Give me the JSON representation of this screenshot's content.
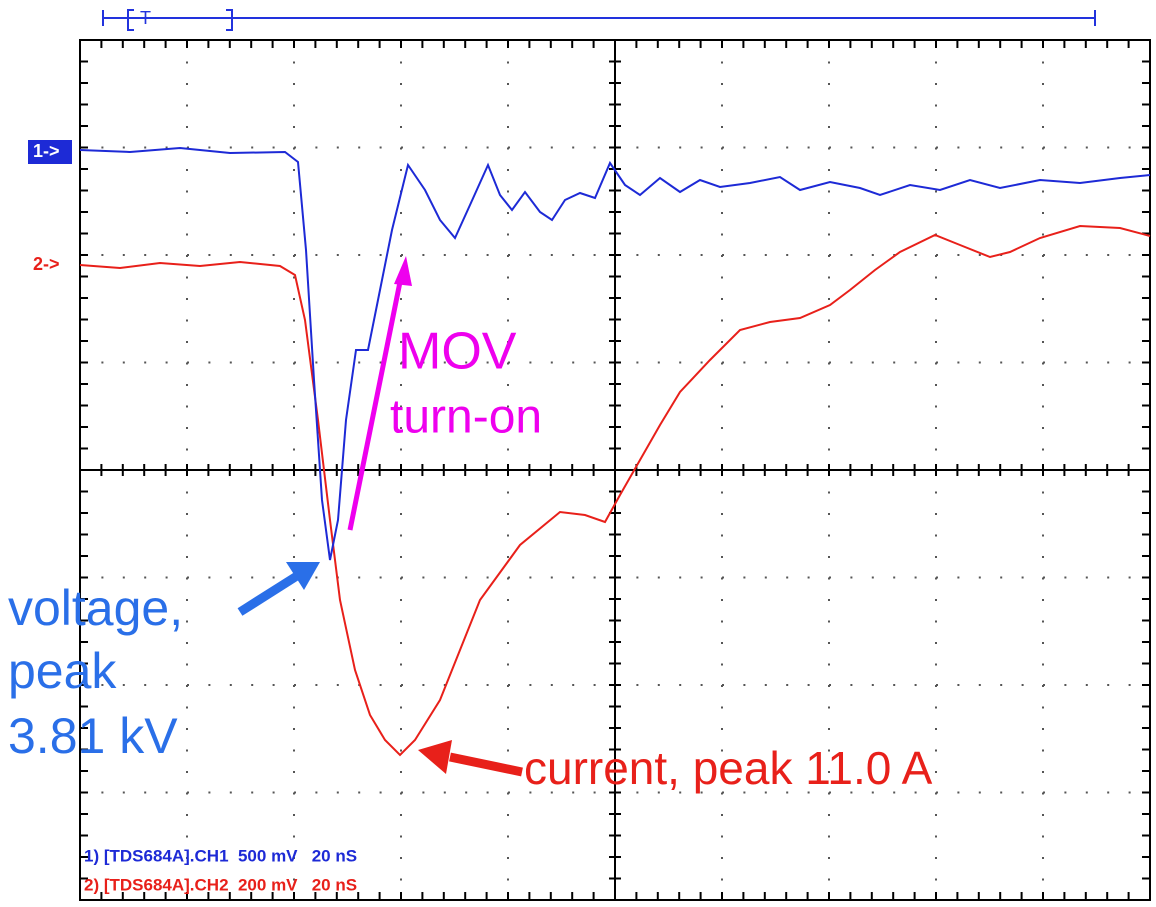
{
  "scope": {
    "trigger": "T",
    "ch1_marker": "1->",
    "ch2_marker": "2->",
    "annotations": {
      "mov_line1": "MOV",
      "mov_line2": "turn-on",
      "voltage_line1": "voltage,",
      "voltage_line2": "peak",
      "voltage_line3": "3.81 kV",
      "current": "current, peak 11.0 A"
    },
    "readout": [
      "1) [TDS684A].CH1  500 mV   20 nS",
      "2) [TDS684A].CH2  200 mV   20 nS"
    ]
  }
}
